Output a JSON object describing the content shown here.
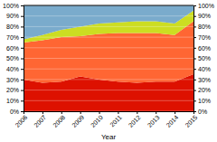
{
  "chart_data": {
    "type": "area",
    "stacked": true,
    "x": [
      2006,
      2007,
      2008,
      2009,
      2010,
      2011,
      2012,
      2013,
      2014,
      2015
    ],
    "series": [
      {
        "color": "#dd1100",
        "values": [
          30,
          27,
          28,
          33,
          30,
          28,
          27,
          28,
          28,
          35
        ]
      },
      {
        "color": "#ff6633",
        "values": [
          35,
          40,
          42,
          38,
          43,
          46,
          47,
          46,
          44,
          50
        ]
      },
      {
        "color": "#ccdd22",
        "values": [
          3,
          5,
          7,
          9,
          10,
          10,
          11,
          11,
          11,
          10
        ]
      },
      {
        "color": "#7aabcc",
        "values": [
          32,
          28,
          23,
          20,
          17,
          16,
          15,
          15,
          17,
          5
        ]
      }
    ],
    "xlabel": "Year",
    "xlim": [
      2006,
      2015
    ],
    "xticks": [
      2006,
      2007,
      2008,
      2009,
      2010,
      2011,
      2012,
      2013,
      2014,
      2015
    ],
    "ylim": [
      0,
      100
    ],
    "yticks": [
      {
        "value": 0,
        "label": "0%"
      },
      {
        "value": 10,
        "label": "10%"
      },
      {
        "value": 20,
        "label": "20%"
      },
      {
        "value": 30,
        "label": "30%"
      },
      {
        "value": 40,
        "label": "40%"
      },
      {
        "value": 50,
        "label": "50%"
      },
      {
        "value": 60,
        "label": "60%"
      },
      {
        "value": 70,
        "label": "70%"
      },
      {
        "value": 80,
        "label": "80%"
      },
      {
        "value": 90,
        "label": "90%"
      },
      {
        "value": 100,
        "label": "100%"
      }
    ],
    "y2lim": [
      0,
      100
    ],
    "y2ticks": [
      {
        "value": 0,
        "label": "0%"
      },
      {
        "value": 10,
        "label": "10%"
      },
      {
        "value": 20,
        "label": "20%"
      },
      {
        "value": 30,
        "label": "30%"
      },
      {
        "value": 40,
        "label": "40%"
      },
      {
        "value": 50,
        "label": "50%"
      },
      {
        "value": 60,
        "label": "60%"
      },
      {
        "value": 70,
        "label": "70%"
      },
      {
        "value": 80,
        "label": "80%"
      },
      {
        "value": 90,
        "label": "90%"
      },
      {
        "value": 100,
        "label": "100%"
      }
    ],
    "grid": true
  }
}
